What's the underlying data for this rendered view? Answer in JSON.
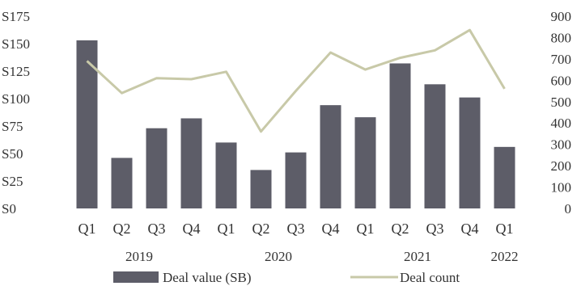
{
  "chart_data": {
    "type": "bar",
    "title": "",
    "xlabel": "",
    "ylabel": "",
    "categories": [
      "Q1",
      "Q2",
      "Q3",
      "Q4",
      "Q1",
      "Q2",
      "Q3",
      "Q4",
      "Q1",
      "Q2",
      "Q3",
      "Q4",
      "Q1"
    ],
    "years": [
      {
        "label": "2019",
        "start": 0,
        "end": 3
      },
      {
        "label": "2020",
        "start": 4,
        "end": 7
      },
      {
        "label": "2021",
        "start": 8,
        "end": 11
      },
      {
        "label": "2022",
        "start": 12,
        "end": 12
      }
    ],
    "series": [
      {
        "name": "Deal value (SB)",
        "type": "bar",
        "axis": "left",
        "color": "#5d5d68",
        "values": [
          153,
          46,
          73,
          82,
          60,
          35,
          51,
          94,
          83,
          132,
          113,
          101,
          56
        ]
      },
      {
        "name": "Deal count",
        "type": "line",
        "axis": "right",
        "color": "#c8c9a8",
        "values": [
          690,
          540,
          610,
          605,
          640,
          360,
          550,
          730,
          650,
          705,
          740,
          835,
          560
        ]
      }
    ],
    "y_left": {
      "range": [
        0,
        175
      ],
      "ticks": [
        0,
        25,
        50,
        75,
        100,
        125,
        150,
        175
      ],
      "tick_labels": [
        "S0",
        "S25",
        "S50",
        "S75",
        "S100",
        "S125",
        "S150",
        "S175"
      ]
    },
    "y_right": {
      "range": [
        0,
        900
      ],
      "ticks": [
        0,
        100,
        200,
        300,
        400,
        500,
        600,
        700,
        800,
        900
      ],
      "tick_labels": [
        "0",
        "100",
        "200",
        "300",
        "400",
        "500",
        "600",
        "700",
        "800",
        "900"
      ]
    },
    "grid": false,
    "legend": "bottom"
  }
}
